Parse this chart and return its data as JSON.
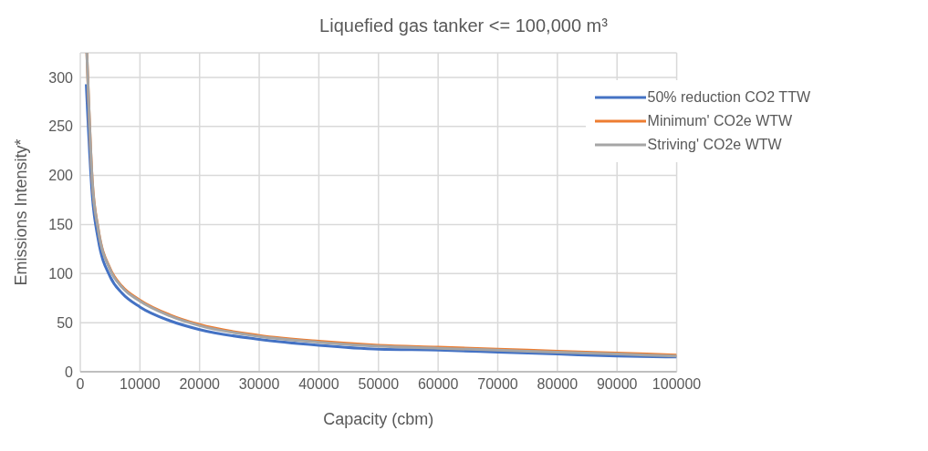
{
  "chart_data": {
    "type": "line",
    "title": "Liquefied gas tanker <= 100,000 m³",
    "xlabel": "Capacity (cbm)",
    "ylabel": "Emissions Intensity*",
    "xlim": [
      0,
      100000
    ],
    "xticks": [
      0,
      10000,
      20000,
      30000,
      40000,
      50000,
      60000,
      70000,
      80000,
      90000,
      100000
    ],
    "ylim": [
      0,
      325
    ],
    "yticks": [
      0,
      50,
      100,
      150,
      200,
      250,
      300
    ],
    "grid": true,
    "legend": "top right",
    "marker": "none",
    "line_style": "solid",
    "series": [
      {
        "name": "50% reduction CO2 TTW",
        "color": "#4472c4",
        "x": [
          1000,
          2000,
          3000,
          5000,
          7000,
          10000,
          15000,
          20000,
          30000,
          40000,
          50000,
          60000,
          70000,
          80000,
          90000,
          100000
        ],
        "values": [
          293,
          180,
          135,
          97,
          80,
          66,
          52,
          43,
          33,
          27,
          23,
          22,
          20,
          18,
          16,
          15
        ]
      },
      {
        "name": "Minimum' CO2e WTW",
        "color": "#ed7d31",
        "x": [
          1100,
          2000,
          3000,
          5000,
          7000,
          10000,
          15000,
          20000,
          30000,
          40000,
          50000,
          60000,
          70000,
          80000,
          90000,
          100000
        ],
        "values": [
          325,
          196,
          146,
          105,
          87,
          73,
          58,
          48,
          37,
          31,
          27,
          25,
          23,
          21,
          19,
          17
        ]
      },
      {
        "name": "Striving' CO2e WTW",
        "color": "#a5a5a5",
        "x": [
          1100,
          2000,
          3000,
          5000,
          7000,
          10000,
          15000,
          20000,
          30000,
          40000,
          50000,
          60000,
          70000,
          80000,
          90000,
          100000
        ],
        "values": [
          325,
          195,
          145,
          104,
          86,
          72,
          57,
          47,
          36,
          30,
          26,
          24,
          22,
          20,
          18,
          16
        ]
      }
    ]
  }
}
